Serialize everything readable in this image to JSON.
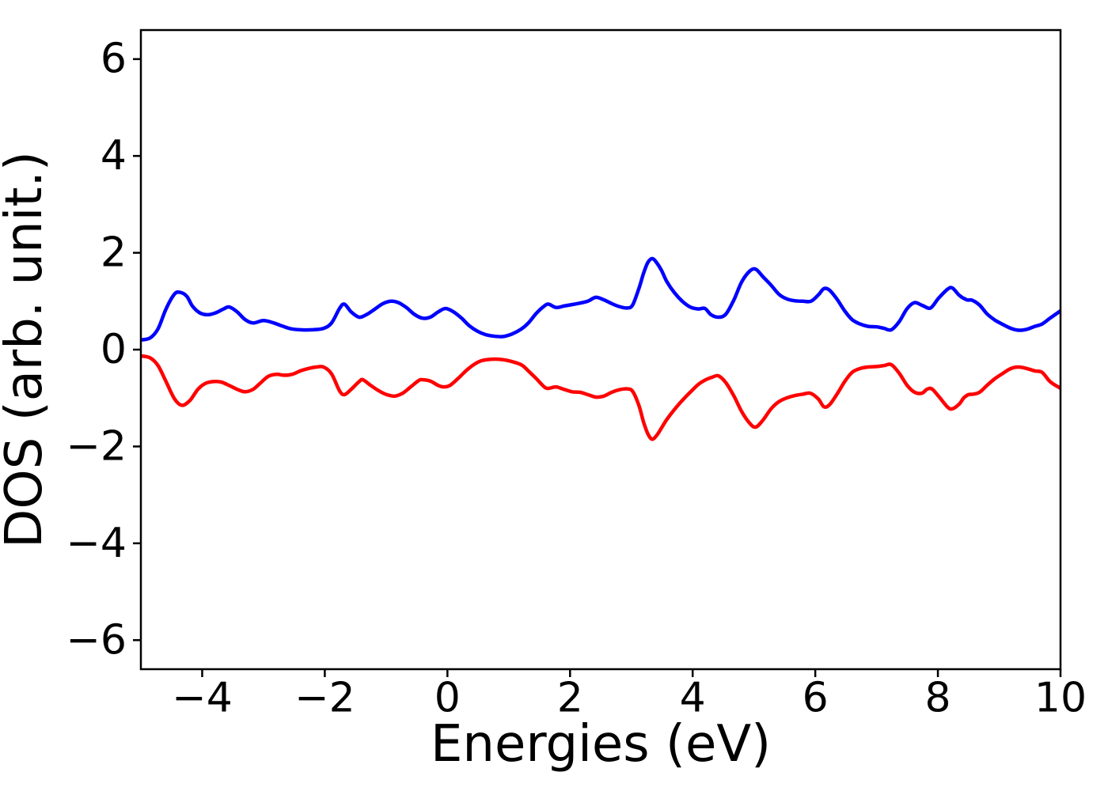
{
  "figure": {
    "background": "#ffffff",
    "title": "",
    "frame_color": "#000000"
  },
  "chart_data": {
    "type": "line",
    "title": "",
    "xlabel": "Energies (eV)",
    "ylabel": "DOS (arb. unit.)",
    "xlim": [
      -5,
      10
    ],
    "ylim": [
      -6.6,
      6.6
    ],
    "grid": false,
    "legend": "none",
    "x_ticks": [
      -4,
      -2,
      0,
      2,
      4,
      6,
      8,
      10
    ],
    "x_tick_labels": [
      "−4",
      "−2",
      "0",
      "2",
      "4",
      "6",
      "8",
      "10"
    ],
    "y_ticks": [
      6,
      4,
      2,
      0,
      -2,
      -4,
      -6
    ],
    "y_tick_labels": [
      "6",
      "4",
      "2",
      "0",
      "−2",
      "−4",
      "−6"
    ],
    "series": [
      {
        "name": "blue-spin-up-dos",
        "color": "#0000ff",
        "points": [
          [
            -5.0,
            0.2
          ],
          [
            -4.85,
            0.24
          ],
          [
            -4.72,
            0.43
          ],
          [
            -4.59,
            0.84
          ],
          [
            -4.45,
            1.15
          ],
          [
            -4.35,
            1.18
          ],
          [
            -4.25,
            1.1
          ],
          [
            -4.16,
            0.9
          ],
          [
            -4.04,
            0.76
          ],
          [
            -3.91,
            0.72
          ],
          [
            -3.78,
            0.76
          ],
          [
            -3.65,
            0.84
          ],
          [
            -3.56,
            0.88
          ],
          [
            -3.43,
            0.78
          ],
          [
            -3.3,
            0.62
          ],
          [
            -3.17,
            0.55
          ],
          [
            -3.0,
            0.6
          ],
          [
            -2.83,
            0.55
          ],
          [
            -2.7,
            0.49
          ],
          [
            -2.55,
            0.43
          ],
          [
            -2.4,
            0.41
          ],
          [
            -2.2,
            0.41
          ],
          [
            -2.02,
            0.44
          ],
          [
            -1.89,
            0.55
          ],
          [
            -1.76,
            0.85
          ],
          [
            -1.68,
            0.94
          ],
          [
            -1.57,
            0.78
          ],
          [
            -1.44,
            0.67
          ],
          [
            -1.31,
            0.73
          ],
          [
            -1.18,
            0.84
          ],
          [
            -1.05,
            0.95
          ],
          [
            -0.92,
            1.0
          ],
          [
            -0.8,
            0.97
          ],
          [
            -0.67,
            0.87
          ],
          [
            -0.54,
            0.73
          ],
          [
            -0.41,
            0.65
          ],
          [
            -0.28,
            0.67
          ],
          [
            -0.15,
            0.78
          ],
          [
            -0.03,
            0.85
          ],
          [
            0.1,
            0.78
          ],
          [
            0.23,
            0.65
          ],
          [
            0.36,
            0.49
          ],
          [
            0.49,
            0.38
          ],
          [
            0.62,
            0.31
          ],
          [
            0.75,
            0.28
          ],
          [
            0.9,
            0.27
          ],
          [
            1.05,
            0.32
          ],
          [
            1.2,
            0.42
          ],
          [
            1.32,
            0.55
          ],
          [
            1.45,
            0.75
          ],
          [
            1.58,
            0.9
          ],
          [
            1.65,
            0.94
          ],
          [
            1.77,
            0.87
          ],
          [
            1.9,
            0.9
          ],
          [
            2.03,
            0.93
          ],
          [
            2.16,
            0.96
          ],
          [
            2.29,
            1.0
          ],
          [
            2.42,
            1.08
          ],
          [
            2.55,
            1.03
          ],
          [
            2.68,
            0.95
          ],
          [
            2.8,
            0.89
          ],
          [
            2.93,
            0.86
          ],
          [
            3.02,
            0.92
          ],
          [
            3.12,
            1.25
          ],
          [
            3.2,
            1.58
          ],
          [
            3.27,
            1.8
          ],
          [
            3.34,
            1.88
          ],
          [
            3.41,
            1.8
          ],
          [
            3.49,
            1.64
          ],
          [
            3.58,
            1.4
          ],
          [
            3.7,
            1.18
          ],
          [
            3.83,
            1.0
          ],
          [
            3.96,
            0.88
          ],
          [
            4.09,
            0.84
          ],
          [
            4.2,
            0.85
          ],
          [
            4.3,
            0.72
          ],
          [
            4.42,
            0.67
          ],
          [
            4.54,
            0.73
          ],
          [
            4.67,
            1.02
          ],
          [
            4.8,
            1.4
          ],
          [
            4.93,
            1.62
          ],
          [
            5.03,
            1.66
          ],
          [
            5.15,
            1.5
          ],
          [
            5.28,
            1.33
          ],
          [
            5.41,
            1.14
          ],
          [
            5.53,
            1.05
          ],
          [
            5.66,
            1.01
          ],
          [
            5.8,
            1.0
          ],
          [
            5.93,
            1.0
          ],
          [
            6.05,
            1.13
          ],
          [
            6.14,
            1.26
          ],
          [
            6.23,
            1.23
          ],
          [
            6.35,
            1.05
          ],
          [
            6.48,
            0.8
          ],
          [
            6.6,
            0.62
          ],
          [
            6.73,
            0.53
          ],
          [
            6.86,
            0.48
          ],
          [
            7.0,
            0.47
          ],
          [
            7.12,
            0.44
          ],
          [
            7.24,
            0.41
          ],
          [
            7.37,
            0.58
          ],
          [
            7.5,
            0.85
          ],
          [
            7.62,
            0.97
          ],
          [
            7.75,
            0.91
          ],
          [
            7.88,
            0.86
          ],
          [
            8.01,
            1.06
          ],
          [
            8.16,
            1.25
          ],
          [
            8.24,
            1.27
          ],
          [
            8.35,
            1.12
          ],
          [
            8.47,
            1.03
          ],
          [
            8.56,
            1.02
          ],
          [
            8.68,
            0.92
          ],
          [
            8.8,
            0.74
          ],
          [
            8.93,
            0.61
          ],
          [
            9.06,
            0.52
          ],
          [
            9.19,
            0.44
          ],
          [
            9.32,
            0.4
          ],
          [
            9.45,
            0.42
          ],
          [
            9.58,
            0.48
          ],
          [
            9.7,
            0.53
          ],
          [
            9.83,
            0.65
          ],
          [
            10.0,
            0.8
          ]
        ]
      },
      {
        "name": "red-spin-down-dos",
        "color": "#ff0000",
        "points": [
          [
            -5.0,
            -0.13
          ],
          [
            -4.85,
            -0.17
          ],
          [
            -4.72,
            -0.33
          ],
          [
            -4.59,
            -0.66
          ],
          [
            -4.45,
            -1.02
          ],
          [
            -4.33,
            -1.15
          ],
          [
            -4.2,
            -1.05
          ],
          [
            -4.07,
            -0.82
          ],
          [
            -3.95,
            -0.7
          ],
          [
            -3.82,
            -0.66
          ],
          [
            -3.69,
            -0.67
          ],
          [
            -3.56,
            -0.74
          ],
          [
            -3.43,
            -0.82
          ],
          [
            -3.3,
            -0.87
          ],
          [
            -3.17,
            -0.82
          ],
          [
            -3.05,
            -0.69
          ],
          [
            -2.92,
            -0.55
          ],
          [
            -2.79,
            -0.51
          ],
          [
            -2.66,
            -0.53
          ],
          [
            -2.53,
            -0.51
          ],
          [
            -2.4,
            -0.44
          ],
          [
            -2.27,
            -0.39
          ],
          [
            -2.14,
            -0.36
          ],
          [
            -2.02,
            -0.36
          ],
          [
            -1.89,
            -0.5
          ],
          [
            -1.76,
            -0.85
          ],
          [
            -1.68,
            -0.93
          ],
          [
            -1.57,
            -0.82
          ],
          [
            -1.44,
            -0.66
          ],
          [
            -1.38,
            -0.62
          ],
          [
            -1.25,
            -0.74
          ],
          [
            -1.12,
            -0.85
          ],
          [
            -0.99,
            -0.93
          ],
          [
            -0.86,
            -0.96
          ],
          [
            -0.73,
            -0.9
          ],
          [
            -0.6,
            -0.77
          ],
          [
            -0.47,
            -0.64
          ],
          [
            -0.41,
            -0.62
          ],
          [
            -0.28,
            -0.65
          ],
          [
            -0.15,
            -0.74
          ],
          [
            -0.06,
            -0.77
          ],
          [
            0.04,
            -0.74
          ],
          [
            0.17,
            -0.6
          ],
          [
            0.3,
            -0.44
          ],
          [
            0.43,
            -0.31
          ],
          [
            0.55,
            -0.23
          ],
          [
            0.7,
            -0.2
          ],
          [
            0.85,
            -0.2
          ],
          [
            1.0,
            -0.23
          ],
          [
            1.2,
            -0.31
          ],
          [
            1.32,
            -0.44
          ],
          [
            1.45,
            -0.6
          ],
          [
            1.58,
            -0.77
          ],
          [
            1.65,
            -0.8
          ],
          [
            1.77,
            -0.77
          ],
          [
            1.9,
            -0.82
          ],
          [
            2.03,
            -0.87
          ],
          [
            2.16,
            -0.88
          ],
          [
            2.29,
            -0.93
          ],
          [
            2.42,
            -0.98
          ],
          [
            2.55,
            -0.96
          ],
          [
            2.68,
            -0.88
          ],
          [
            2.8,
            -0.83
          ],
          [
            2.93,
            -0.81
          ],
          [
            3.02,
            -0.86
          ],
          [
            3.12,
            -1.14
          ],
          [
            3.2,
            -1.5
          ],
          [
            3.27,
            -1.74
          ],
          [
            3.34,
            -1.85
          ],
          [
            3.42,
            -1.76
          ],
          [
            3.5,
            -1.6
          ],
          [
            3.58,
            -1.44
          ],
          [
            3.7,
            -1.24
          ],
          [
            3.83,
            -1.05
          ],
          [
            3.96,
            -0.88
          ],
          [
            4.09,
            -0.72
          ],
          [
            4.2,
            -0.63
          ],
          [
            4.32,
            -0.57
          ],
          [
            4.42,
            -0.54
          ],
          [
            4.54,
            -0.68
          ],
          [
            4.67,
            -0.95
          ],
          [
            4.8,
            -1.28
          ],
          [
            4.93,
            -1.52
          ],
          [
            5.03,
            -1.6
          ],
          [
            5.15,
            -1.45
          ],
          [
            5.28,
            -1.22
          ],
          [
            5.4,
            -1.08
          ],
          [
            5.53,
            -1.0
          ],
          [
            5.66,
            -0.95
          ],
          [
            5.8,
            -0.92
          ],
          [
            5.92,
            -0.9
          ],
          [
            6.05,
            -1.02
          ],
          [
            6.14,
            -1.18
          ],
          [
            6.23,
            -1.14
          ],
          [
            6.35,
            -0.93
          ],
          [
            6.48,
            -0.66
          ],
          [
            6.6,
            -0.47
          ],
          [
            6.73,
            -0.39
          ],
          [
            6.86,
            -0.36
          ],
          [
            7.0,
            -0.35
          ],
          [
            7.12,
            -0.33
          ],
          [
            7.24,
            -0.31
          ],
          [
            7.37,
            -0.49
          ],
          [
            7.5,
            -0.74
          ],
          [
            7.62,
            -0.88
          ],
          [
            7.74,
            -0.9
          ],
          [
            7.82,
            -0.82
          ],
          [
            7.9,
            -0.81
          ],
          [
            8.01,
            -0.96
          ],
          [
            8.16,
            -1.19
          ],
          [
            8.24,
            -1.22
          ],
          [
            8.35,
            -1.12
          ],
          [
            8.42,
            -1.0
          ],
          [
            8.5,
            -0.93
          ],
          [
            8.58,
            -0.92
          ],
          [
            8.68,
            -0.88
          ],
          [
            8.8,
            -0.74
          ],
          [
            8.93,
            -0.6
          ],
          [
            9.06,
            -0.49
          ],
          [
            9.19,
            -0.39
          ],
          [
            9.32,
            -0.36
          ],
          [
            9.45,
            -0.39
          ],
          [
            9.58,
            -0.44
          ],
          [
            9.7,
            -0.47
          ],
          [
            9.83,
            -0.66
          ],
          [
            10.0,
            -0.8
          ]
        ]
      }
    ]
  }
}
